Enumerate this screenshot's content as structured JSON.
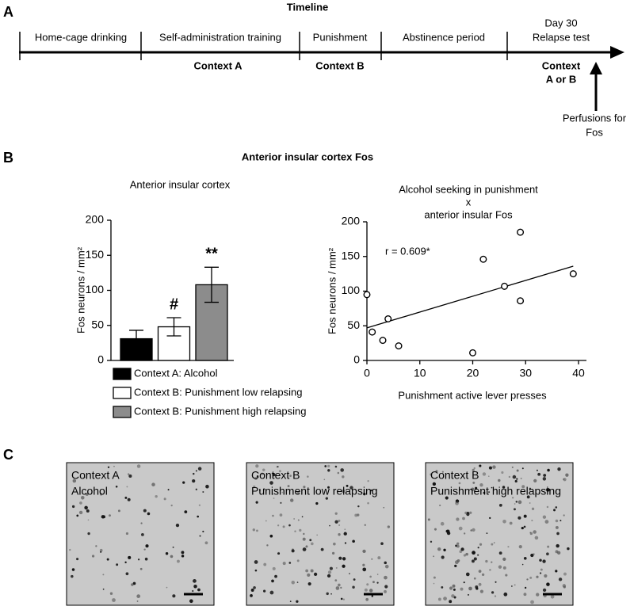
{
  "panels": {
    "a": "A",
    "b": "B",
    "c": "C"
  },
  "timeline": {
    "title": "Timeline",
    "stages": [
      "Home-cage drinking",
      "Self-administration training",
      "Punishment",
      "Abstinence period"
    ],
    "day": "Day 30",
    "test": "Relapse test",
    "contexts": [
      "Context A",
      "Context B"
    ],
    "test_context": [
      "Context",
      "A or B"
    ],
    "perfusion": [
      "Perfusions for",
      "Fos"
    ]
  },
  "panel_b_title": "Anterior insular cortex Fos",
  "chart_data": [
    {
      "type": "bar",
      "title": "Anterior insular cortex",
      "ylabel": "Fos neurons / mm²",
      "categories": [
        "Context A: Alcohol",
        "Context B: Punishment low relapsing",
        "Context B: Punishment high relapsing"
      ],
      "values": [
        31,
        48,
        108
      ],
      "errors": [
        12,
        13,
        25
      ],
      "colors": [
        "#000000",
        "#ffffff",
        "#8c8c8c"
      ],
      "annotations": [
        null,
        "#",
        "**"
      ],
      "ylim": [
        0,
        200
      ],
      "yticks": [
        0,
        50,
        100,
        150,
        200
      ]
    },
    {
      "type": "scatter",
      "title": [
        "Alcohol seeking in punishment",
        "x",
        "anterior insular Fos"
      ],
      "annotation": "r = 0.609*",
      "xlabel": "Punishment active lever presses",
      "ylabel": "Fos neurons / mm²",
      "x": [
        0,
        1,
        4,
        3,
        6,
        20,
        22,
        26,
        29,
        29,
        39
      ],
      "values": [
        95,
        41,
        60,
        29,
        21,
        11,
        146,
        107,
        185,
        86,
        125
      ],
      "fit": {
        "x": [
          0,
          39
        ],
        "y": [
          47,
          136
        ]
      },
      "xlim": [
        0,
        40
      ],
      "ylim": [
        0,
        200
      ],
      "xticks": [
        0,
        10,
        20,
        30,
        40
      ],
      "yticks": [
        0,
        50,
        100,
        150,
        200
      ]
    }
  ],
  "images": [
    {
      "label": [
        "Context A",
        "Alcohol"
      ],
      "density": 90
    },
    {
      "label": [
        "Context B",
        "Punishment low relapsing"
      ],
      "density": 150
    },
    {
      "label": [
        "Context B",
        "Punishment high relapsing"
      ],
      "density": 190
    }
  ]
}
